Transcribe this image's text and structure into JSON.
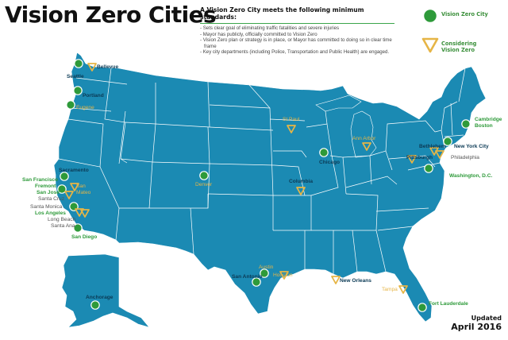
{
  "title": "Vision Zero Cities",
  "standards": {
    "heading": "A Vision Zero City meets the following minimum standards:",
    "items": [
      "Sets clear goal of eliminating traffic fatalities and severe injuries",
      "Mayor has publicly, officially committed to Vision Zero",
      "Vision Zero plan or strategy is in place, or Mayor has committed to doing so in clear time frame",
      "Key city departments (including Police, Transportation and Public Health) are engaged."
    ]
  },
  "legend": {
    "vz_city": "Vision Zero City",
    "considering_line1": "Considering",
    "considering_line2": "Vision Zero"
  },
  "updated": {
    "label": "Updated",
    "date": "April 2016"
  },
  "colors": {
    "land": "#1b8ab3",
    "state_border": "#ffffff",
    "vz_city": "#2e9a3a",
    "considering": "#e6b546",
    "title": "#111111"
  },
  "cities": {
    "bellevue": "Bellevue",
    "seattle": "Seattle",
    "portland": "Portland",
    "eugene": "Eugene",
    "sacramento": "Sacramento",
    "san_francisco": "San Francisco",
    "fremont": "Fremont",
    "san_jose": "San Jose",
    "san_mateo": "San\nMateo",
    "santa_cruz": "Santa Cruz",
    "santa_monica": "Santa Monica",
    "los_angeles": "Los Angeles",
    "long_beach": "Long Beach",
    "santa_ana": "Santa Ana",
    "san_diego": "San Diego",
    "anchorage": "Anchorage",
    "denver": "Denver",
    "st_paul": "St Paul",
    "columbia": "Columbia",
    "chicago": "Chicago",
    "ann_arbor": "Ann Arbor",
    "pittsburgh": "Pittsburgh",
    "bethlehem": "Bethlehem",
    "philadelphia": "Philadelphia",
    "new_york_city": "New York City",
    "cambridge": "Cambridge",
    "boston": "Boston",
    "washington_dc": "Washington, D.C.",
    "austin": "Austin",
    "san_antonio": "San Antonio",
    "houston": "Houston",
    "new_orleans": "New Orleans",
    "tampa": "Tampa",
    "fort_lauderdale": "Fort Lauderdale"
  }
}
